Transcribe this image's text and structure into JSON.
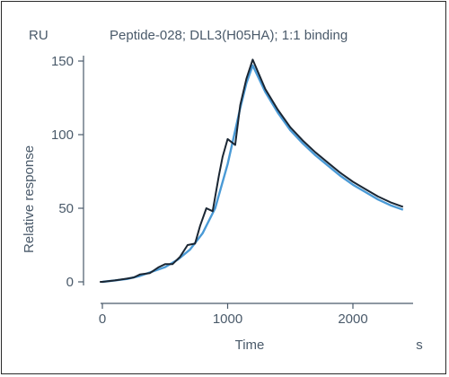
{
  "chart_data": {
    "type": "line",
    "title": "Peptide-028; DLL3(H05HA); 1:1 binding",
    "unit_y": "RU",
    "unit_x": "s",
    "xlabel": "Time",
    "ylabel": "Relative response",
    "xlim": [
      -100,
      2500
    ],
    "ylim": [
      -5,
      160
    ],
    "x_ticks": [
      "0",
      "1000",
      "2000"
    ],
    "y_ticks": [
      "0",
      "50",
      "100",
      "150"
    ],
    "x_tick_values": [
      0,
      1000,
      2000
    ],
    "y_tick_values": [
      0,
      50,
      100,
      150
    ],
    "grid": false,
    "series": [
      {
        "color": "#1a2633",
        "x": [
          -20,
          0,
          100,
          180,
          250,
          300,
          380,
          450,
          500,
          560,
          620,
          680,
          740,
          780,
          830,
          880,
          930,
          960,
          1000,
          1060,
          1100,
          1150,
          1200,
          1300,
          1400,
          1500,
          1600,
          1700,
          1800,
          1900,
          2000,
          2100,
          2200,
          2300,
          2400
        ],
        "y": [
          0,
          0,
          1,
          2,
          3,
          5,
          6,
          10,
          12,
          12,
          17,
          25,
          26,
          38,
          50,
          48,
          72,
          85,
          97,
          93,
          120,
          138,
          151,
          131,
          117,
          105,
          96,
          88,
          81,
          74,
          68,
          63,
          58,
          54,
          51
        ]
      },
      {
        "color": "#4a9ad6",
        "x": [
          0,
          100,
          200,
          300,
          400,
          500,
          600,
          700,
          800,
          900,
          1000,
          1100,
          1150,
          1200,
          1300,
          1400,
          1500,
          1600,
          1700,
          1800,
          1900,
          2000,
          2100,
          2200,
          2300,
          2400
        ],
        "y": [
          0,
          1,
          2,
          4,
          7,
          10,
          15,
          22,
          33,
          50,
          80,
          118,
          135,
          147,
          129,
          115,
          103,
          94,
          86,
          79,
          72,
          66,
          61,
          56,
          52,
          49
        ]
      }
    ]
  }
}
